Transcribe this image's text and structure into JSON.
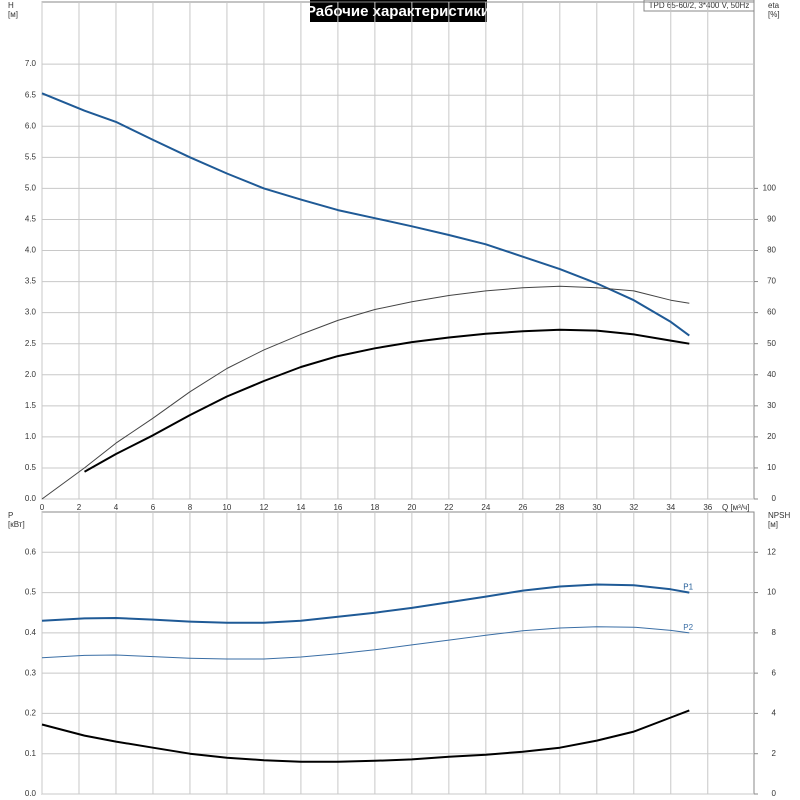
{
  "chart_data": [
    {
      "type": "line",
      "title": "Рабочие характеристики",
      "model": "TPD 65-60/2, 3*400 V, 50Hz",
      "ylabel": "H",
      "yunit": "[м]",
      "y2label": "eta",
      "y2unit": "[%]",
      "xlabel": "Q [м³/ч]",
      "x": [
        0,
        2.3,
        4,
        6,
        8,
        10,
        12,
        14,
        16,
        18,
        20,
        22,
        24,
        26,
        28,
        30,
        32,
        34,
        35
      ],
      "xlim": [
        0,
        38.5
      ],
      "xticks": [
        0,
        2,
        4,
        6,
        8,
        10,
        12,
        14,
        16,
        18,
        20,
        22,
        24,
        26,
        28,
        30,
        32,
        34,
        36
      ],
      "show_xtick_labels": true,
      "ylim": [
        0,
        8
      ],
      "yticks": [
        {
          "value": 0,
          "label": "0.0"
        },
        {
          "value": 0.5,
          "label": "0.5"
        },
        {
          "value": 1,
          "label": "1.0"
        },
        {
          "value": 1.5,
          "label": "1.5"
        },
        {
          "value": 2,
          "label": "2.0"
        },
        {
          "value": 2.5,
          "label": "2.5"
        },
        {
          "value": 3,
          "label": "3.0"
        },
        {
          "value": 3.5,
          "label": "3.5"
        },
        {
          "value": 4,
          "label": "4.0"
        },
        {
          "value": 4.5,
          "label": "4.5"
        },
        {
          "value": 5,
          "label": "5.0"
        },
        {
          "value": 5.5,
          "label": "5.5"
        },
        {
          "value": 6,
          "label": "6.0"
        },
        {
          "value": 6.5,
          "label": "6.5"
        },
        {
          "value": 7,
          "label": "7.0"
        }
      ],
      "y2lim": [
        0,
        160
      ],
      "y2ticks": [
        0,
        10,
        20,
        30,
        40,
        50,
        60,
        70,
        80,
        90,
        100
      ],
      "grid": true,
      "series": [
        {
          "color": "#1f5a96",
          "line_width": 2,
          "values": [
            6.53,
            6.25,
            6.07,
            5.78,
            5.5,
            5.24,
            5.0,
            4.82,
            4.65,
            4.52,
            4.39,
            4.25,
            4.1,
            3.9,
            3.7,
            3.47,
            3.2,
            2.85,
            2.63
          ]
        },
        {
          "color": "#444444",
          "line_width": 1,
          "axis": "y2",
          "values": [
            0,
            10,
            18,
            26,
            34.5,
            42,
            48,
            53,
            57.5,
            61,
            63.5,
            65.5,
            67,
            68,
            68.5,
            68,
            67,
            64,
            63
          ]
        },
        {
          "color": "#000000",
          "line_width": 2,
          "axis": "y2",
          "values": [
            null,
            8.8,
            14.5,
            20.5,
            27,
            33,
            38,
            42.5,
            46,
            48.5,
            50.5,
            52,
            53.2,
            54,
            54.5,
            54.2,
            53,
            51,
            50
          ]
        }
      ]
    },
    {
      "type": "line",
      "ylabel": "P",
      "yunit": "[кВт]",
      "y2label": "NPSH",
      "y2unit": "[м]",
      "x": [
        0,
        2.3,
        4,
        6,
        8,
        10,
        12,
        14,
        16,
        18,
        20,
        22,
        24,
        26,
        28,
        30,
        32,
        34,
        35
      ],
      "xlim": [
        0,
        38.5
      ],
      "xticks": [
        0,
        2,
        4,
        6,
        8,
        10,
        12,
        14,
        16,
        18,
        20,
        22,
        24,
        26,
        28,
        30,
        32,
        34,
        36
      ],
      "show_xtick_labels": false,
      "ylim": [
        0,
        0.7
      ],
      "yticks": [
        {
          "value": 0,
          "label": "0.0"
        },
        0.1,
        0.2,
        0.3,
        0.4,
        0.5,
        0.6
      ],
      "y2lim": [
        0,
        14
      ],
      "y2ticks": [
        0,
        2,
        4,
        6,
        8,
        10,
        12
      ],
      "grid": true,
      "series": [
        {
          "name": "P1",
          "color": "#1f5a96",
          "line_width": 2,
          "values": [
            0.43,
            0.436,
            0.437,
            0.433,
            0.428,
            0.425,
            0.425,
            0.43,
            0.44,
            0.45,
            0.462,
            0.476,
            0.49,
            0.505,
            0.515,
            0.52,
            0.518,
            0.508,
            0.5
          ]
        },
        {
          "name": "P2",
          "color": "#3a6ea5",
          "line_width": 1,
          "values": [
            0.338,
            0.344,
            0.345,
            0.341,
            0.337,
            0.335,
            0.335,
            0.34,
            0.348,
            0.358,
            0.37,
            0.382,
            0.394,
            0.405,
            0.412,
            0.415,
            0.414,
            0.406,
            0.4
          ]
        },
        {
          "color": "#000000",
          "line_width": 2,
          "axis": "y2",
          "values": [
            3.45,
            2.9,
            2.6,
            2.3,
            2.0,
            1.8,
            1.68,
            1.6,
            1.6,
            1.65,
            1.72,
            1.85,
            1.95,
            2.1,
            2.3,
            2.65,
            3.1,
            3.8,
            4.15
          ]
        }
      ]
    }
  ]
}
